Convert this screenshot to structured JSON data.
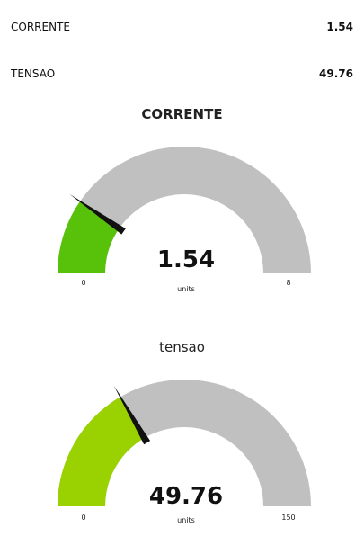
{
  "readouts": [
    {
      "label": "CORRENTE",
      "value": "1.54"
    },
    {
      "label": "TENSAO",
      "value": "49.76"
    }
  ],
  "gauges": [
    {
      "title": "CORRENTE",
      "value": 1.54,
      "value_text": "1.54",
      "units": "units",
      "min": 0,
      "max": 8,
      "min_text": "0",
      "max_text": "8",
      "fill_color": "#58c20a"
    },
    {
      "title": "tensao",
      "value": 49.76,
      "value_text": "49.76",
      "units": "units",
      "min": 0,
      "max": 150,
      "min_text": "0",
      "max_text": "150",
      "fill_color": "#99d200"
    }
  ],
  "colors": {
    "track": "#c0c0c0",
    "needle": "#111111"
  }
}
